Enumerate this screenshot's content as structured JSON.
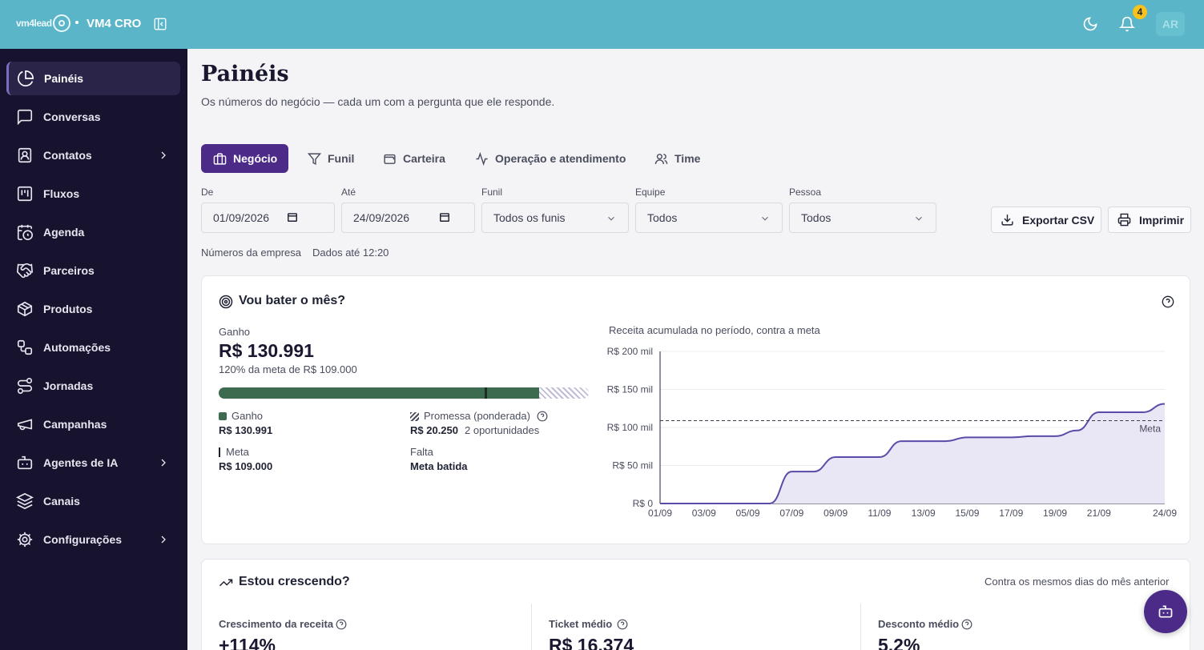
{
  "header": {
    "logo_text": "vm4lead",
    "brand": "VM4 CRO",
    "notification_count": "4",
    "avatar_initials": "AR"
  },
  "sidebar": {
    "items": [
      {
        "label": "Painéis",
        "icon": "pie-chart-icon",
        "active": true
      },
      {
        "label": "Conversas",
        "icon": "chat-icon"
      },
      {
        "label": "Contatos",
        "icon": "contact-icon",
        "has_submenu": true
      },
      {
        "label": "Fluxos",
        "icon": "kanban-icon"
      },
      {
        "label": "Agenda",
        "icon": "calendar-clock-icon"
      },
      {
        "label": "Parceiros",
        "icon": "handshake-icon"
      },
      {
        "label": "Produtos",
        "icon": "package-icon"
      },
      {
        "label": "Automações",
        "icon": "workflow-icon"
      },
      {
        "label": "Jornadas",
        "icon": "route-icon"
      },
      {
        "label": "Campanhas",
        "icon": "megaphone-icon"
      },
      {
        "label": "Agentes de IA",
        "icon": "bot-icon",
        "has_submenu": true
      },
      {
        "label": "Canais",
        "icon": "layers-icon"
      },
      {
        "label": "Configurações",
        "icon": "gear-icon",
        "has_submenu": true
      }
    ]
  },
  "page": {
    "title": "Painéis",
    "subtitle": "Os números do negócio — cada um com a pergunta que ele responde."
  },
  "tabs": [
    {
      "label": "Negócio",
      "icon": "building-icon",
      "active": true
    },
    {
      "label": "Funil",
      "icon": "funnel-icon"
    },
    {
      "label": "Carteira",
      "icon": "wallet-icon"
    },
    {
      "label": "Operação e atendimento",
      "icon": "activity-icon"
    },
    {
      "label": "Time",
      "icon": "users-icon"
    }
  ],
  "filters": {
    "from_label": "De",
    "from_value": "01/09/2026",
    "to_label": "Até",
    "to_value": "24/09/2026",
    "funnel_label": "Funil",
    "funnel_value": "Todos os funis",
    "team_label": "Equipe",
    "team_value": "Todos",
    "person_label": "Pessoa",
    "person_value": "Todos"
  },
  "actions": {
    "export": "Exportar CSV",
    "print": "Imprimir"
  },
  "scope": {
    "company": "Números da empresa",
    "updated": "Dados até 12:20"
  },
  "month_card": {
    "title": "Vou bater o mês?",
    "won_label": "Ganho",
    "won_value": "R$ 130.991",
    "goal_text": "120% da meta de R$ 109.000",
    "progress_won_pct": 120,
    "progress_promise_pct": 18.6,
    "legend": {
      "won_label": "Ganho",
      "won_value": "R$ 130.991",
      "promise_label": "Promessa (ponderada)",
      "promise_value": "R$ 20.250",
      "promise_ops": "2 oportunidades",
      "goal_label": "Meta",
      "goal_value": "R$ 109.000",
      "missing_label": "Falta",
      "missing_value": "Meta batida"
    },
    "colors": {
      "won": "#3d6b4f",
      "goal_marker": "#1a2e22",
      "accent": "#5b4ba8"
    }
  },
  "chart_data": {
    "type": "area",
    "title": "Receita acumulada no período, contra a meta",
    "x": [
      "01/09",
      "02/09",
      "03/09",
      "04/09",
      "05/09",
      "06/09",
      "07/09",
      "08/09",
      "09/09",
      "10/09",
      "11/09",
      "12/09",
      "13/09",
      "14/09",
      "15/09",
      "16/09",
      "17/09",
      "18/09",
      "19/09",
      "20/09",
      "21/09",
      "22/09",
      "23/09",
      "24/09"
    ],
    "x_tick_labels": [
      "01/09",
      "03/09",
      "05/09",
      "07/09",
      "09/09",
      "11/09",
      "13/09",
      "15/09",
      "17/09",
      "19/09",
      "21/09",
      "24/09"
    ],
    "series": [
      {
        "values": [
          0,
          0,
          0,
          0,
          0,
          0,
          42000,
          42000,
          61000,
          61000,
          61000,
          82000,
          82000,
          82000,
          87000,
          87000,
          87000,
          88500,
          88500,
          96000,
          120000,
          120000,
          120000,
          130991
        ]
      }
    ],
    "goal": {
      "label": "Meta",
      "value": 109000
    },
    "y_tick_labels": [
      "R$ 0",
      "R$ 50 mil",
      "R$ 100 mil",
      "R$ 150 mil",
      "R$ 200 mil"
    ],
    "ylim": [
      0,
      200000
    ],
    "grid": true
  },
  "growth_card": {
    "title": "Estou crescendo?",
    "comparison": "Contra os mesmos dias do mês anterior",
    "kpis": [
      {
        "label": "Crescimento da receita",
        "value": "+114%"
      },
      {
        "label": "Ticket médio",
        "value": "R$ 16.374"
      },
      {
        "label": "Desconto médio",
        "value": "5,2%"
      }
    ]
  }
}
